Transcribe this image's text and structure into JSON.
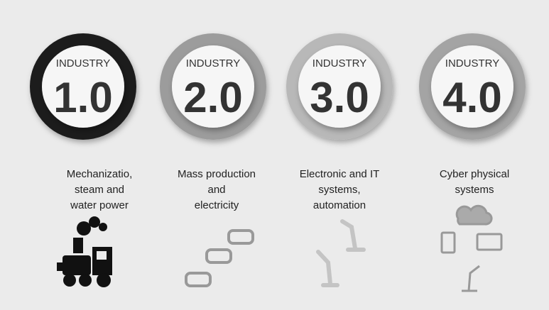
{
  "stages": [
    {
      "label": "INDUSTRY",
      "number": "1.0",
      "description": [
        "Mechanizatio,",
        "steam and",
        "water power"
      ]
    },
    {
      "label": "INDUSTRY",
      "number": "2.0",
      "description": [
        "Mass production",
        "and",
        "electricity"
      ]
    },
    {
      "label": "INDUSTRY",
      "number": "3.0",
      "description": [
        "Electronic and IT",
        "systems,",
        "automation"
      ]
    },
    {
      "label": "INDUSTRY",
      "number": "4.0",
      "description": [
        "Cyber physical",
        "systems"
      ]
    }
  ]
}
